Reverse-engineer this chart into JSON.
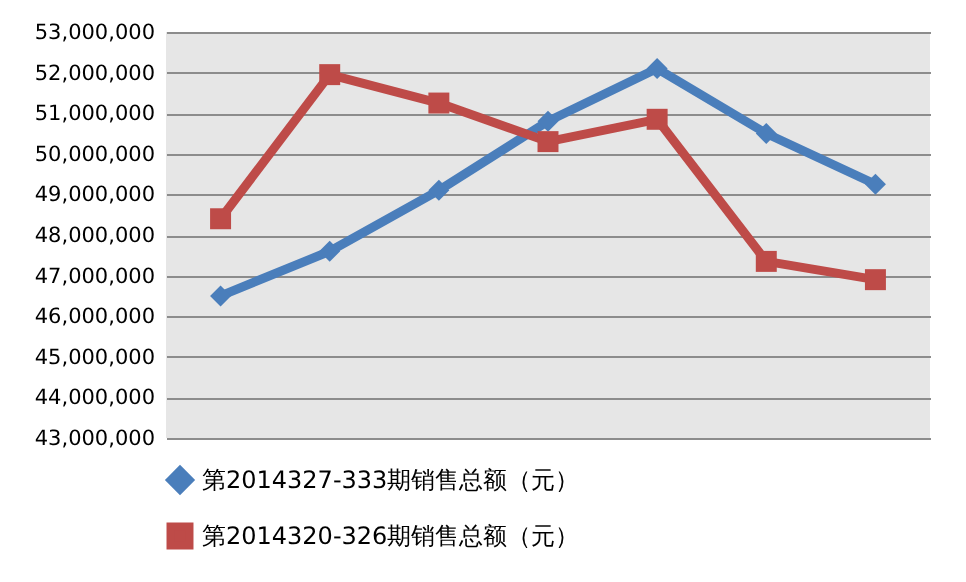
{
  "chart_data": {
    "type": "line",
    "categories": [
      null,
      null,
      null,
      null,
      null,
      null,
      null
    ],
    "series": [
      {
        "name": "第2014327-333期销售总额（元）",
        "color": "#4a7ebb",
        "marker": "diamond",
        "values": [
          46500000,
          47600000,
          49100000,
          50800000,
          52100000,
          50500000,
          49250000
        ]
      },
      {
        "name": "第2014320-326期销售总额（元）",
        "color": "#be4b48",
        "marker": "square",
        "values": [
          48400000,
          51950000,
          51250000,
          50300000,
          50850000,
          47350000,
          46900000
        ]
      }
    ],
    "ylim": [
      43000000,
      53000000
    ],
    "yticks": [
      {
        "value": 43000000,
        "label": "43,000,000"
      },
      {
        "value": 44000000,
        "label": "44,000,000"
      },
      {
        "value": 45000000,
        "label": "45,000,000"
      },
      {
        "value": 46000000,
        "label": "46,000,000"
      },
      {
        "value": 47000000,
        "label": "47,000,000"
      },
      {
        "value": 48000000,
        "label": "48,000,000"
      },
      {
        "value": 49000000,
        "label": "49,000,000"
      },
      {
        "value": 50000000,
        "label": "50,000,000"
      },
      {
        "value": 51000000,
        "label": "51,000,000"
      },
      {
        "value": 52000000,
        "label": "52,000,000"
      },
      {
        "value": 53000000,
        "label": "53,000,000"
      }
    ],
    "grid": "y",
    "legend": "bottom",
    "tick_labels": "y"
  }
}
